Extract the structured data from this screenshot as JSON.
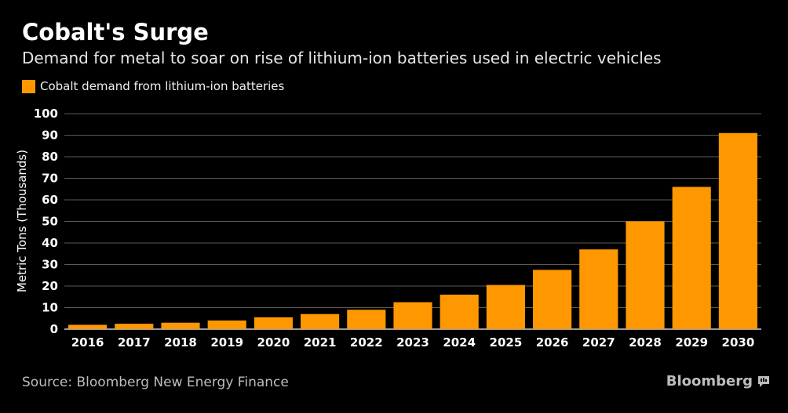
{
  "header": {
    "title": "Cobalt's Surge",
    "subtitle": "Demand for metal to soar on rise of lithium-ion batteries used in electric vehicles"
  },
  "footer": {
    "source": "Source: Bloomberg New Energy Finance",
    "brand": "Bloomberg",
    "brand_icon": "speech-bubble-icon"
  },
  "colors": {
    "background": "#000000",
    "bar": "#ff9800",
    "grid": "#5a5a5a",
    "text": "#ffffff"
  },
  "chart_data": {
    "type": "bar",
    "title": "Cobalt's Surge",
    "subtitle": "Demand for metal to soar on rise of lithium-ion batteries used in electric vehicles",
    "xlabel": "",
    "ylabel": "Metric Tons (Thousands)",
    "ylim": [
      0,
      100
    ],
    "yticks": [
      0,
      10,
      20,
      30,
      40,
      50,
      60,
      70,
      80,
      90,
      100
    ],
    "grid": true,
    "legend": "top-left",
    "categories": [
      "2016",
      "2017",
      "2018",
      "2019",
      "2020",
      "2021",
      "2022",
      "2023",
      "2024",
      "2025",
      "2026",
      "2027",
      "2028",
      "2029",
      "2030"
    ],
    "series": [
      {
        "name": "Cobalt demand from lithium-ion batteries",
        "color": "#ff9800",
        "values": [
          2,
          2.5,
          3,
          4,
          5.5,
          7,
          9,
          12.5,
          16,
          20.5,
          27.5,
          37,
          50,
          66,
          91
        ]
      }
    ]
  }
}
